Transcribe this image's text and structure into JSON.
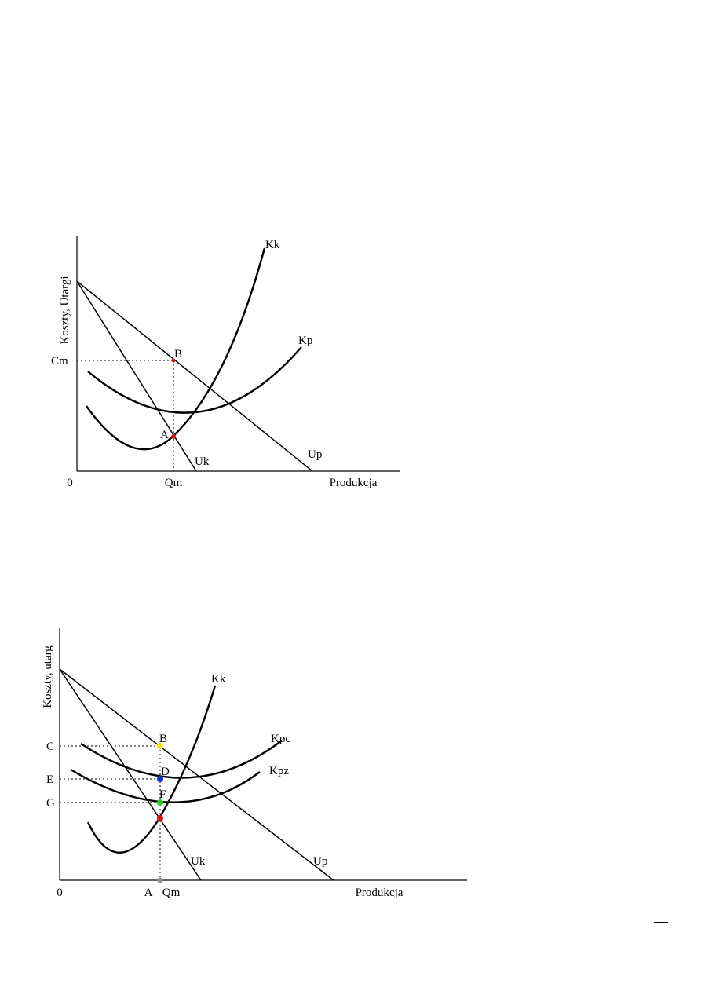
{
  "figure1": {
    "y_axis_label": "Koszty, Utargi",
    "x_axis_label": "Produkcja",
    "origin": "0",
    "tick_y": "Cm",
    "tick_x": "Qm",
    "curves": {
      "kk": "Kk",
      "kp": "Kp",
      "uk": "Uk",
      "up": "Up"
    },
    "points": {
      "a": "A",
      "b": "B"
    },
    "point_color": "#e01010"
  },
  "figure2": {
    "y_axis_label": "Koszty, utarg",
    "x_axis_label": "Produkcja",
    "origin": "0",
    "tick_y": {
      "c": "C",
      "e": "E",
      "g": "G"
    },
    "tick_x": {
      "a": "A",
      "qm": "Qm"
    },
    "curves": {
      "kk": "Kk",
      "kpc": "Kpc",
      "kpz": "Kpz",
      "uk": "Uk",
      "up": "Up"
    },
    "points": {
      "b": "B",
      "d": "D",
      "f": "F"
    },
    "point_colors": {
      "b": "#e8e820",
      "d": "#1030d0",
      "f": "#20d020",
      "mc": "#e01010",
      "axis": "#909090"
    }
  }
}
